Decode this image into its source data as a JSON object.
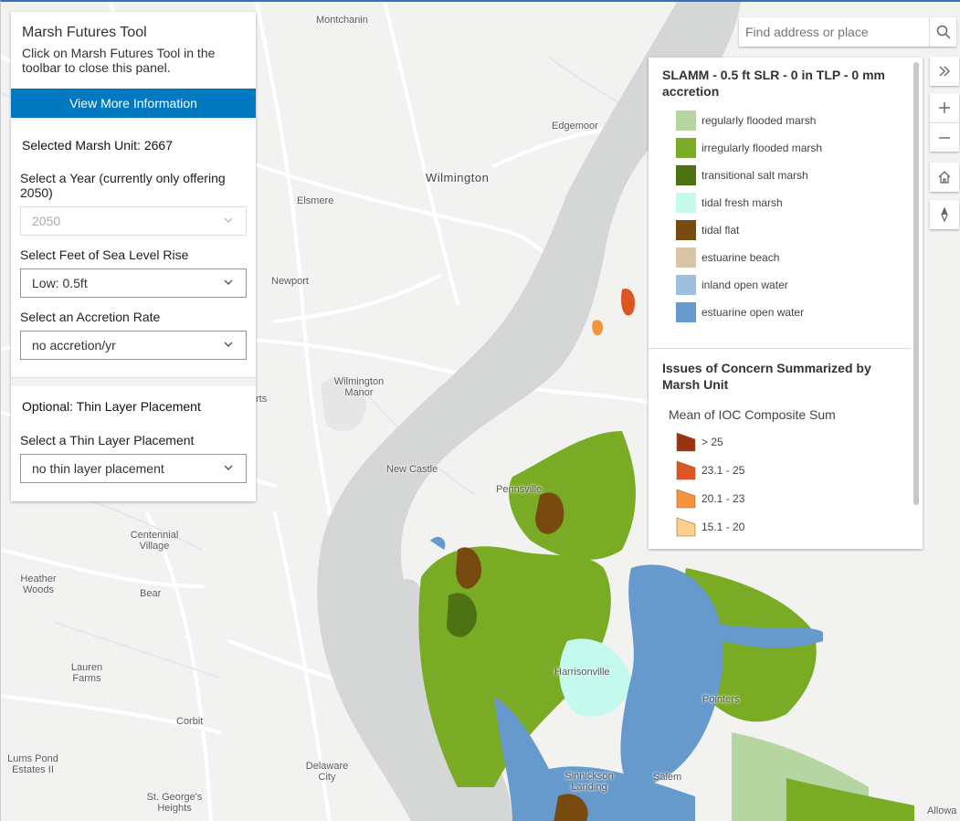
{
  "panel": {
    "title": "Marsh Futures Tool",
    "subtitle": "Click on Marsh Futures Tool in the toolbar to close this panel.",
    "info_button": "View More Information",
    "selected_unit": "Selected Marsh Unit: 2667",
    "year_label": "Select a Year (currently only offering 2050)",
    "year_value": "2050",
    "slr_label": "Select Feet of Sea Level Rise",
    "slr_value": "Low: 0.5ft",
    "accretion_label": "Select an Accretion Rate",
    "accretion_value": "no accretion/yr",
    "optional_title": "Optional: Thin Layer Placement",
    "tlp_label": "Select a Thin Layer Placement",
    "tlp_value": "no thin layer placement"
  },
  "search": {
    "placeholder": "Find address or place"
  },
  "legend": {
    "slamm_title": "SLAMM - 0.5 ft SLR - 0 in TLP - 0 mm accretion",
    "slamm_items": [
      {
        "label": "regularly flooded marsh",
        "color": "#b5d6a0"
      },
      {
        "label": "irregularly flooded marsh",
        "color": "#7aab25"
      },
      {
        "label": "transitional salt marsh",
        "color": "#4d7213"
      },
      {
        "label": "tidal fresh marsh",
        "color": "#c4faee"
      },
      {
        "label": "tidal flat",
        "color": "#774b10"
      },
      {
        "label": "estuarine beach",
        "color": "#d9c6a8"
      },
      {
        "label": "inland open water",
        "color": "#9ebfde"
      },
      {
        "label": "estuarine open water",
        "color": "#6699cc"
      }
    ],
    "ioc_title": "Issues of Concern Summarized by Marsh Unit",
    "ioc_subtitle": "Mean of IOC Composite Sum",
    "ioc_items": [
      {
        "label": "> 25",
        "color": "#993311"
      },
      {
        "label": "23.1 - 25",
        "color": "#dd5522"
      },
      {
        "label": "20.1 - 23",
        "color": "#f5943c"
      },
      {
        "label": "15.1 - 20",
        "color": "#fdd08e"
      }
    ]
  },
  "map": {
    "labels": [
      "Montchanin",
      "Edgemoor",
      "Wilmington",
      "Elsmere",
      "Newport",
      "Wilmington Manor",
      "New Castle",
      "Pennsville",
      "Centennial Village",
      "Heather Woods",
      "Bear",
      "Lauren Farms",
      "Corbit",
      "Harrisonville",
      "Pointers",
      "Lums Pond Estates II",
      "Delaware City",
      "St. George's Heights",
      "Sinnickson Landing",
      "Salem",
      "Allowa",
      "rts"
    ]
  },
  "colors": {
    "accent": "#0079c1",
    "water": "#d5d6d6",
    "land": "#f2f2f0",
    "marsh_blue": "#6699cc"
  }
}
